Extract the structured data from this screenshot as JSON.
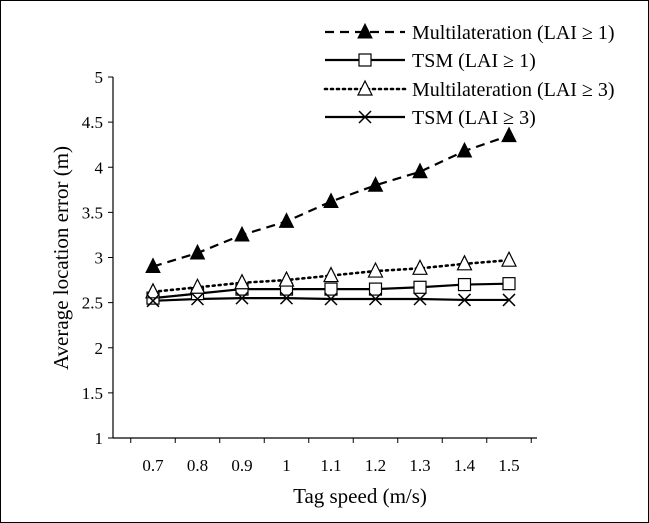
{
  "chart_data": {
    "type": "line",
    "title": "",
    "xlabel": "Tag speed (m/s)",
    "ylabel": "Average location error (m)",
    "x": [
      0.7,
      0.8,
      0.9,
      1,
      1.1,
      1.2,
      1.3,
      1.4,
      1.5
    ],
    "x_tick_labels": [
      "0.7",
      "0.8",
      "0.9",
      "1",
      "1.1",
      "1.2",
      "1.3",
      "1.4",
      "1.5"
    ],
    "ylim": [
      1,
      5
    ],
    "y_ticks": [
      1,
      1.5,
      2,
      2.5,
      3,
      3.5,
      4,
      4.5,
      5
    ],
    "y_tick_labels": [
      "1",
      "1.5",
      "2",
      "2.5",
      "3",
      "3.5",
      "4",
      "4.5",
      "5"
    ],
    "grid": false,
    "legend_position": "top-right",
    "series": [
      {
        "name": "Multilateration (LAI ≥ 1)",
        "line_style": "dashed",
        "marker": "filled-triangle",
        "values": [
          2.9,
          3.05,
          3.25,
          3.4,
          3.62,
          3.8,
          3.95,
          4.18,
          4.35
        ]
      },
      {
        "name": "TSM (LAI ≥ 1)",
        "line_style": "solid",
        "marker": "open-square",
        "values": [
          2.55,
          2.6,
          2.65,
          2.65,
          2.65,
          2.65,
          2.67,
          2.7,
          2.71
        ]
      },
      {
        "name": "Multilateration (LAI ≥ 3)",
        "line_style": "dotted",
        "marker": "open-triangle",
        "values": [
          2.62,
          2.67,
          2.72,
          2.75,
          2.8,
          2.85,
          2.88,
          2.93,
          2.97
        ]
      },
      {
        "name": "TSM (LAI ≥ 3)",
        "line_style": "solid",
        "marker": "x",
        "values": [
          2.52,
          2.54,
          2.55,
          2.55,
          2.54,
          2.54,
          2.54,
          2.53,
          2.53
        ]
      }
    ]
  }
}
